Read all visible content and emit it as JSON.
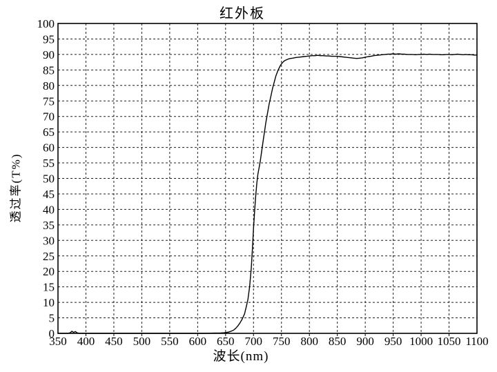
{
  "chart_data": {
    "type": "line",
    "title": "红外板",
    "xlabel": "波长(nm)",
    "ylabel": "透过率(T%)",
    "xlim": [
      350,
      1100
    ],
    "ylim": [
      0,
      100
    ],
    "x_ticks": [
      350,
      400,
      450,
      500,
      550,
      600,
      650,
      700,
      750,
      800,
      850,
      900,
      950,
      1000,
      1050,
      1100
    ],
    "y_ticks": [
      0,
      5,
      10,
      15,
      20,
      25,
      30,
      35,
      40,
      45,
      50,
      55,
      60,
      65,
      70,
      75,
      80,
      85,
      90,
      95,
      100
    ],
    "grid": "dashed",
    "legend": "none",
    "background_color": "#ffffff",
    "line_color": "#000000",
    "grid_color": "#1c1c1c",
    "series": [
      {
        "name": "透过率",
        "points": [
          [
            350,
            0
          ],
          [
            360,
            0
          ],
          [
            368,
            0
          ],
          [
            372,
            0.2
          ],
          [
            375,
            0.7
          ],
          [
            378,
            0.3
          ],
          [
            381,
            0.6
          ],
          [
            384,
            0.2
          ],
          [
            388,
            0
          ],
          [
            400,
            0
          ],
          [
            420,
            0
          ],
          [
            440,
            0
          ],
          [
            460,
            0
          ],
          [
            480,
            0
          ],
          [
            500,
            0
          ],
          [
            520,
            0
          ],
          [
            540,
            0
          ],
          [
            560,
            0
          ],
          [
            580,
            0
          ],
          [
            600,
            0
          ],
          [
            615,
            0
          ],
          [
            630,
            0.1
          ],
          [
            640,
            0.1
          ],
          [
            648,
            0.2
          ],
          [
            655,
            0.4
          ],
          [
            660,
            0.7
          ],
          [
            664,
            1
          ],
          [
            668,
            1.6
          ],
          [
            672,
            2.4
          ],
          [
            676,
            3.4
          ],
          [
            680,
            4.7
          ],
          [
            684,
            6.3
          ],
          [
            687,
            8.5
          ],
          [
            690,
            11
          ],
          [
            693,
            15
          ],
          [
            696,
            21
          ],
          [
            698,
            27
          ],
          [
            700,
            34
          ],
          [
            702,
            39.5
          ],
          [
            704,
            44.5
          ],
          [
            706,
            48.5
          ],
          [
            708,
            51.5
          ],
          [
            710,
            53.5
          ],
          [
            712,
            55.5
          ],
          [
            714,
            58
          ],
          [
            716,
            60.5
          ],
          [
            718,
            63
          ],
          [
            720,
            65.5
          ],
          [
            722,
            68
          ],
          [
            725,
            71
          ],
          [
            728,
            74
          ],
          [
            731,
            76.5
          ],
          [
            734,
            79
          ],
          [
            737,
            81
          ],
          [
            740,
            83
          ],
          [
            743,
            84.5
          ],
          [
            746,
            85.7
          ],
          [
            749,
            86.7
          ],
          [
            752,
            87.4
          ],
          [
            755,
            87.9
          ],
          [
            758,
            88.2
          ],
          [
            762,
            88.5
          ],
          [
            766,
            88.7
          ],
          [
            770,
            88.8
          ],
          [
            775,
            89
          ],
          [
            780,
            89.1
          ],
          [
            785,
            89.2
          ],
          [
            790,
            89.3
          ],
          [
            795,
            89.4
          ],
          [
            800,
            89.5
          ],
          [
            805,
            89.6
          ],
          [
            810,
            89.6
          ],
          [
            815,
            89.7
          ],
          [
            820,
            89.6
          ],
          [
            825,
            89.6
          ],
          [
            830,
            89.5
          ],
          [
            835,
            89.5
          ],
          [
            840,
            89.4
          ],
          [
            845,
            89.4
          ],
          [
            850,
            89.4
          ],
          [
            855,
            89.3
          ],
          [
            860,
            89.2
          ],
          [
            865,
            89.1
          ],
          [
            870,
            89
          ],
          [
            875,
            88.9
          ],
          [
            880,
            88.8
          ],
          [
            885,
            88.7
          ],
          [
            890,
            88.8
          ],
          [
            895,
            88.9
          ],
          [
            900,
            89.1
          ],
          [
            905,
            89.3
          ],
          [
            910,
            89.4
          ],
          [
            915,
            89.6
          ],
          [
            920,
            89.7
          ],
          [
            925,
            89.8
          ],
          [
            930,
            89.9
          ],
          [
            935,
            90
          ],
          [
            940,
            90.1
          ],
          [
            945,
            90.1
          ],
          [
            950,
            90.2
          ],
          [
            955,
            90.1
          ],
          [
            960,
            90.2
          ],
          [
            965,
            90.1
          ],
          [
            970,
            90.1
          ],
          [
            975,
            90
          ],
          [
            980,
            90
          ],
          [
            985,
            90
          ],
          [
            990,
            89.9
          ],
          [
            995,
            90
          ],
          [
            1000,
            90
          ],
          [
            1005,
            90.1
          ],
          [
            1010,
            90
          ],
          [
            1015,
            90.1
          ],
          [
            1020,
            90
          ],
          [
            1025,
            90
          ],
          [
            1030,
            90
          ],
          [
            1035,
            89.9
          ],
          [
            1040,
            89.9
          ],
          [
            1045,
            90
          ],
          [
            1050,
            90
          ],
          [
            1055,
            89.9
          ],
          [
            1060,
            90
          ],
          [
            1065,
            90.1
          ],
          [
            1070,
            90
          ],
          [
            1075,
            89.9
          ],
          [
            1080,
            90
          ],
          [
            1085,
            89.9
          ],
          [
            1090,
            89.9
          ],
          [
            1095,
            89.8
          ],
          [
            1100,
            89.8
          ]
        ]
      }
    ]
  }
}
